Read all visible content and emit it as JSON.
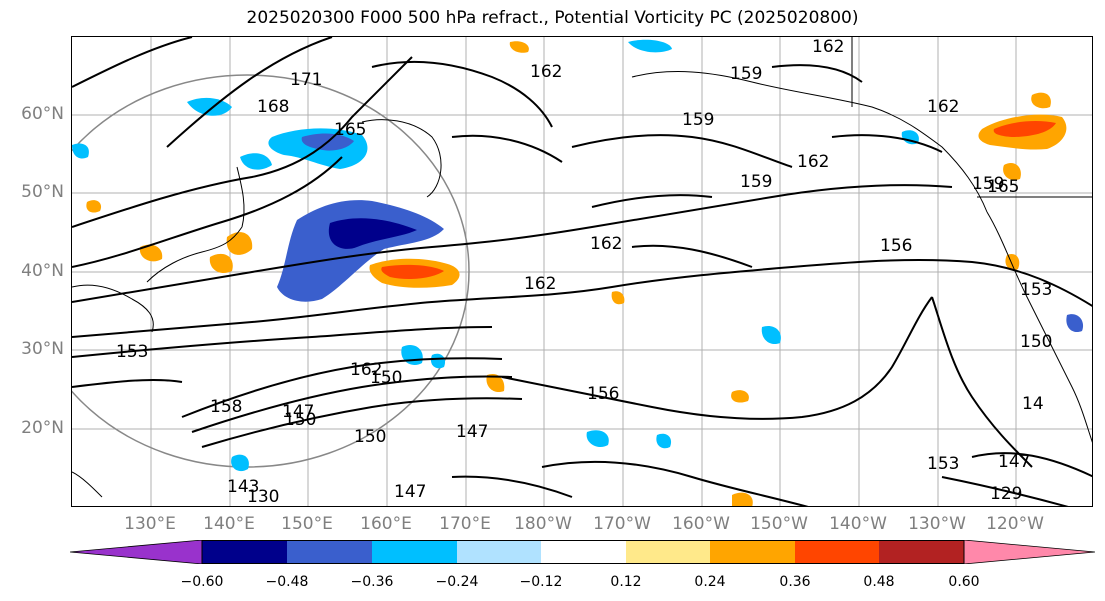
{
  "title": "2025020300 F000 500 hPa refract., Potential Vorticity PC (2025020800)",
  "lat_labels": [
    "60°N",
    "50°N",
    "40°N",
    "30°N",
    "20°N"
  ],
  "lon_labels": [
    "130°E",
    "140°E",
    "150°E",
    "160°E",
    "170°E",
    "180°W",
    "170°W",
    "160°W",
    "150°W",
    "140°W",
    "130°W",
    "120°W"
  ],
  "contour_labels": [
    "171",
    "168",
    "165",
    "162",
    "162",
    "159",
    "159",
    "159",
    "162",
    "162",
    "162",
    "159",
    "156",
    "162",
    "153",
    "150",
    "150",
    "147",
    "156",
    "158",
    "150",
    "147",
    "153",
    "147",
    "143",
    "130",
    "147",
    "153",
    "129",
    "14",
    "165",
    "150",
    "162"
  ],
  "colorbar": {
    "ticks": [
      "−0.60",
      "−0.48",
      "−0.36",
      "−0.24",
      "−0.12",
      "0.12",
      "0.24",
      "0.36",
      "0.48",
      "0.60"
    ],
    "colors": [
      "#9932cc",
      "#00008b",
      "#3a5fcd",
      "#00bfff",
      "#b0e2ff",
      "#ffffff",
      "#ffe98a",
      "#ffa500",
      "#ff4500",
      "#b22222",
      "#ff88aa"
    ]
  },
  "colors": {
    "label_grey": "#7f7f7f",
    "grid": "#b0b0b0"
  }
}
